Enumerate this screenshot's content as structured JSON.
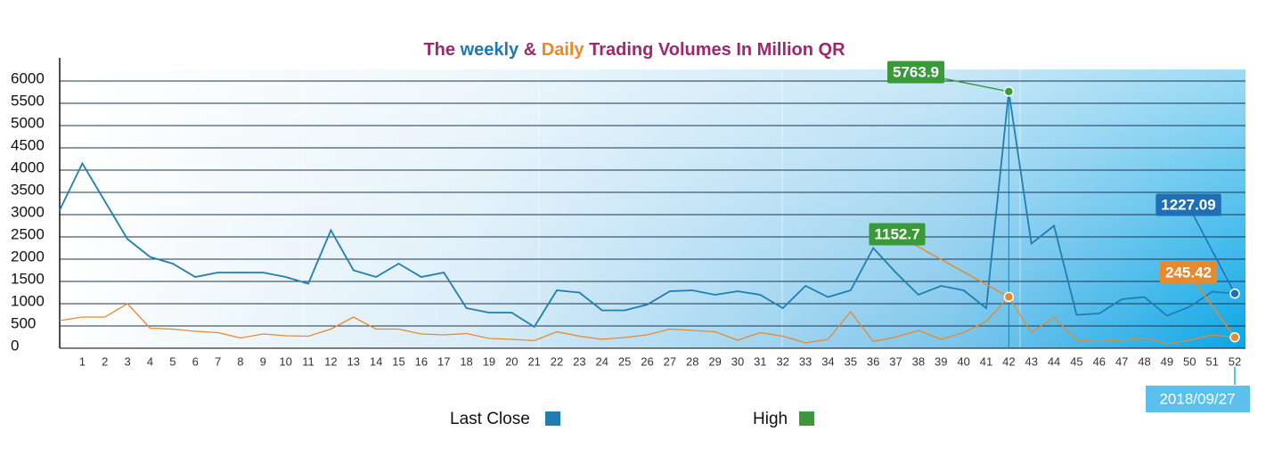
{
  "chart_data": {
    "type": "line",
    "title_parts": [
      {
        "text": "The ",
        "color": "#9b2a6b"
      },
      {
        "text": "weekly",
        "color": "#1f78b4"
      },
      {
        "text": " & ",
        "color": "#9b2a6b"
      },
      {
        "text": "Daily",
        "color": "#e8892b"
      },
      {
        "text": " Trading Volumes In Million QR",
        "color": "#9b2a6b"
      }
    ],
    "categories": [
      null,
      "1",
      "2",
      "3",
      "4",
      "5",
      "6",
      "7",
      "8",
      "9",
      "10",
      "11",
      "12",
      "13",
      "14",
      "15",
      "16",
      "17",
      "18",
      "19",
      "20",
      "21",
      "22",
      "23",
      "24",
      "25",
      "26",
      "27",
      "28",
      "29",
      "30",
      "31",
      "32",
      "33",
      "34",
      "35",
      "36",
      "37",
      "38",
      "39",
      "40",
      "41",
      "42",
      "43",
      "44",
      "45",
      "46",
      "47",
      "48",
      "49",
      "50",
      "51",
      "52"
    ],
    "series": [
      {
        "name": "Last Close",
        "color": "#1f7fb0",
        "label_color": "#1f6fb5",
        "values": [
          3100,
          4150,
          3300,
          2450,
          2050,
          1900,
          1600,
          1700,
          1700,
          1700,
          1600,
          1450,
          2650,
          1750,
          1600,
          1900,
          1600,
          1700,
          900,
          800,
          800,
          480,
          1300,
          1250,
          850,
          850,
          980,
          1280,
          1300,
          1200,
          1280,
          1200,
          900,
          1400,
          1150,
          1300,
          2250,
          1700,
          1200,
          1400,
          1300,
          900,
          5763.9,
          2350,
          2750,
          750,
          780,
          1100,
          1150,
          730,
          930,
          1270,
          1227.09
        ]
      },
      {
        "name": "High",
        "color": "#e8892b",
        "legend_color": "#3a9a3a",
        "label_color": "#3a9a3a",
        "values": [
          620,
          700,
          700,
          1000,
          450,
          430,
          380,
          350,
          230,
          320,
          280,
          270,
          430,
          700,
          430,
          430,
          320,
          300,
          330,
          220,
          200,
          170,
          370,
          270,
          200,
          240,
          300,
          430,
          400,
          370,
          180,
          350,
          270,
          120,
          200,
          820,
          150,
          250,
          400,
          200,
          350,
          600,
          1152.7,
          350,
          700,
          180,
          150,
          180,
          230,
          100,
          180,
          300,
          245.42
        ]
      }
    ],
    "annotation": "2018/09/27",
    "ylim": [
      0,
      6000
    ],
    "yticks": [
      0,
      500,
      1000,
      1500,
      2000,
      2500,
      3000,
      3500,
      4000,
      4500,
      5000,
      5500,
      6000
    ],
    "grid": true
  }
}
